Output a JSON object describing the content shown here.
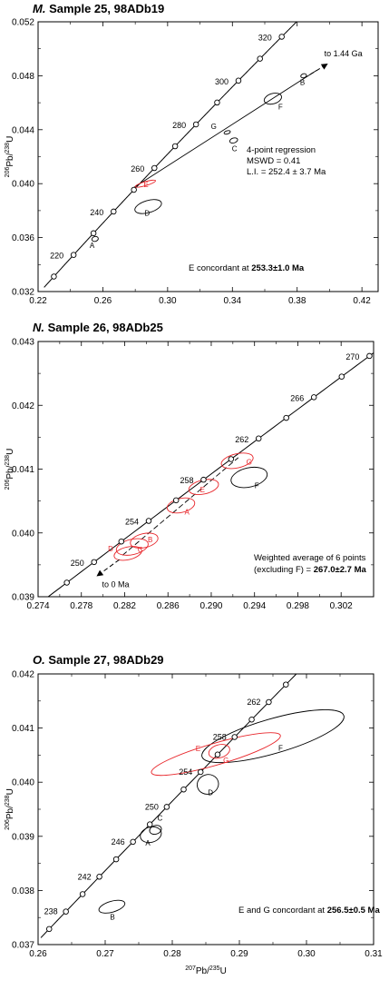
{
  "chart_data": [
    {
      "type": "scatter",
      "panel_letter": "M.",
      "title": "Sample 25, 98ADb19",
      "xlim": [
        0.22,
        0.43
      ],
      "ylim": [
        0.032,
        0.052
      ],
      "xticks": [
        0.22,
        0.26,
        0.3,
        0.34,
        0.38,
        0.42
      ],
      "xtick_labels": [
        "0.22",
        "0.26",
        "0.30",
        "0.34",
        "0.38",
        "0.42"
      ],
      "yticks": [
        0.032,
        0.036,
        0.04,
        0.044,
        0.048,
        0.052
      ],
      "ytick_labels": [
        "0.032",
        "0.036",
        "0.040",
        "0.044",
        "0.048",
        "0.052"
      ],
      "ylabel": "206Pb/238U",
      "ylabel_parts": {
        "sup1": "206",
        "base1": "Pb/",
        "sup2": "238",
        "base2": "U"
      },
      "concordia_range_ma": [
        205,
        330
      ],
      "concordia_age_labels": [
        {
          "ma": 220,
          "text": "220"
        },
        {
          "ma": 240,
          "text": "240"
        },
        {
          "ma": 260,
          "text": "260"
        },
        {
          "ma": 280,
          "text": "280"
        },
        {
          "ma": 300,
          "text": "300"
        },
        {
          "ma": 320,
          "text": "320"
        }
      ],
      "concordia_points_ma": [
        210,
        220,
        230,
        240,
        250,
        260,
        270,
        280,
        290,
        300,
        310,
        320,
        330
      ],
      "regression_line": {
        "x1": 0.279,
        "y1": 0.0397,
        "x2": 0.392,
        "y2": 0.0484
      },
      "arrow": {
        "text": "to 1.44 Ga",
        "x1": 0.384,
        "y1": 0.0478,
        "x2": 0.399,
        "y2": 0.0489
      },
      "ellipses": [
        {
          "label": "A",
          "x": 0.2552,
          "y": 0.0359,
          "rx": 0.002,
          "ry": 0.00018,
          "color": "#000000"
        },
        {
          "label": "B",
          "x": 0.384,
          "y": 0.048,
          "rx": 0.0018,
          "ry": 0.00015,
          "color": "#000000"
        },
        {
          "label": "C",
          "x": 0.3408,
          "y": 0.0432,
          "rx": 0.0025,
          "ry": 0.00018,
          "color": "#000000"
        },
        {
          "label": "D",
          "x": 0.288,
          "y": 0.0383,
          "rx": 0.0085,
          "ry": 0.00045,
          "color": "#000000"
        },
        {
          "label": "E",
          "x": 0.2863,
          "y": 0.04,
          "rx": 0.0065,
          "ry": 0.00015,
          "color": "#e8262b"
        },
        {
          "label": "F",
          "x": 0.365,
          "y": 0.0463,
          "rx": 0.0055,
          "ry": 0.00038,
          "color": "#000000"
        },
        {
          "label": "G",
          "x": 0.3368,
          "y": 0.0438,
          "rx": 0.002,
          "ry": 0.00012,
          "color": "#000000"
        }
      ],
      "notes": [
        {
          "lines": [
            "4-point regression",
            "MSWD = 0.41",
            "L.I. = 252.4 ± 3.7 Ma"
          ]
        }
      ],
      "bold_note": {
        "prefix": "E concordant at ",
        "value": "253.3±1.0 Ma"
      }
    },
    {
      "type": "scatter",
      "panel_letter": "N.",
      "title": "Sample 26, 98ADb25",
      "xlim": [
        0.274,
        0.305
      ],
      "ylim": [
        0.039,
        0.043
      ],
      "xticks": [
        0.274,
        0.278,
        0.282,
        0.286,
        0.29,
        0.294,
        0.298,
        0.302
      ],
      "xtick_labels": [
        "0.274",
        "0.278",
        "0.282",
        "0.286",
        "0.290",
        "0.294",
        "0.298",
        "0.302"
      ],
      "yticks": [
        0.039,
        0.04,
        0.041,
        0.042,
        0.043
      ],
      "ytick_labels": [
        "0.039",
        "0.040",
        "0.041",
        "0.042",
        "0.043"
      ],
      "ylabel": "206Pb/238U",
      "ylabel_parts": {
        "sup1": "206",
        "base1": "Pb/",
        "sup2": "238",
        "base2": "U"
      },
      "concordia_range_ma": [
        245,
        272
      ],
      "concordia_age_labels": [
        {
          "ma": 250,
          "text": "250"
        },
        {
          "ma": 254,
          "text": "254"
        },
        {
          "ma": 258,
          "text": "258"
        },
        {
          "ma": 262,
          "text": "262"
        },
        {
          "ma": 266,
          "text": "266"
        },
        {
          "ma": 270,
          "text": "270"
        }
      ],
      "concordia_points_ma": [
        248,
        250,
        252,
        254,
        256,
        258,
        260,
        262,
        264,
        266,
        268,
        270
      ],
      "regression_line": {
        "x1": 0.2818,
        "y1": 0.03965,
        "x2": 0.2925,
        "y2": 0.04118
      },
      "arrow": {
        "text": "to 0 Ma",
        "x1": 0.2815,
        "y1": 0.03958,
        "x2": 0.2794,
        "y2": 0.03932
      },
      "ellipses": [
        {
          "label": "A",
          "x": 0.2872,
          "y": 0.04043,
          "rx": 0.0013,
          "ry": 0.00011,
          "color": "#e8262b"
        },
        {
          "label": "B",
          "x": 0.2838,
          "y": 0.03988,
          "rx": 0.0013,
          "ry": 0.00011,
          "color": "#e8262b"
        },
        {
          "label": "C",
          "x": 0.2827,
          "y": 0.03978,
          "rx": 0.0015,
          "ry": 0.00012,
          "color": "#e8262b"
        },
        {
          "label": "D",
          "x": 0.2823,
          "y": 0.03968,
          "rx": 0.0013,
          "ry": 0.0001,
          "color": "#e8262b"
        },
        {
          "label": "E",
          "x": 0.2893,
          "y": 0.04072,
          "rx": 0.0014,
          "ry": 0.00011,
          "color": "#e8262b"
        },
        {
          "label": "F",
          "x": 0.2935,
          "y": 0.04087,
          "rx": 0.0017,
          "ry": 0.00015,
          "color": "#000000"
        },
        {
          "label": "G",
          "x": 0.2924,
          "y": 0.04113,
          "rx": 0.0015,
          "ry": 0.00011,
          "color": "#e8262b"
        }
      ],
      "notes": [
        {
          "lines": [
            "Weighted average of 6 points"
          ]
        }
      ],
      "bold_note": {
        "prefix": "(excluding F) = ",
        "value": "267.0±2.7 Ma"
      }
    },
    {
      "type": "scatter",
      "panel_letter": "O.",
      "title": "Sample 27, 98ADb29",
      "xlim": [
        0.26,
        0.31
      ],
      "ylim": [
        0.037,
        0.042
      ],
      "xticks": [
        0.26,
        0.27,
        0.28,
        0.29,
        0.3,
        0.31
      ],
      "xtick_labels": [
        "0.26",
        "0.27",
        "0.28",
        "0.29",
        "0.30",
        "0.31"
      ],
      "yticks": [
        0.037,
        0.038,
        0.039,
        0.04,
        0.041,
        0.042
      ],
      "ytick_labels": [
        "0.037",
        "0.038",
        "0.039",
        "0.040",
        "0.041",
        "0.042"
      ],
      "ylabel": "206Pb/238U",
      "ylabel_parts": {
        "sup1": "206",
        "base1": "Pb/",
        "sup2": "238",
        "base2": "U"
      },
      "xlabel": "207Pb/235U",
      "xlabel_parts": {
        "sup1": "207",
        "base1": "Pb/",
        "sup2": "235",
        "base2": "U"
      },
      "concordia_range_ma": [
        235,
        266
      ],
      "concordia_age_labels": [
        {
          "ma": 238,
          "text": "238"
        },
        {
          "ma": 242,
          "text": "242"
        },
        {
          "ma": 246,
          "text": "246"
        },
        {
          "ma": 250,
          "text": "250"
        },
        {
          "ma": 254,
          "text": "254"
        },
        {
          "ma": 258,
          "text": "258"
        },
        {
          "ma": 262,
          "text": "262"
        }
      ],
      "concordia_points_ma": [
        236,
        238,
        240,
        242,
        244,
        246,
        248,
        250,
        252,
        254,
        256,
        258,
        260,
        262,
        264
      ],
      "ellipses": [
        {
          "label": "A",
          "x": 0.2768,
          "y": 0.03903,
          "rx": 0.0016,
          "ry": 0.00014,
          "color": "#000000"
        },
        {
          "label": "B",
          "x": 0.271,
          "y": 0.0377,
          "rx": 0.002,
          "ry": 0.0001,
          "color": "#000000"
        },
        {
          "label": "C",
          "x": 0.2775,
          "y": 0.03912,
          "rx": 0.0009,
          "ry": 8e-05,
          "color": "#000000"
        },
        {
          "label": "D",
          "x": 0.2853,
          "y": 0.03996,
          "rx": 0.0016,
          "ry": 0.00018,
          "color": "#000000"
        },
        {
          "label": "E",
          "x": 0.287,
          "y": 0.04057,
          "rx": 0.0016,
          "ry": 0.00012,
          "color": "#e8262b"
        },
        {
          "label": "F",
          "x": 0.295,
          "y": 0.04085,
          "rx": 0.011,
          "ry": 0.00032,
          "color": "#000000"
        },
        {
          "label": "G",
          "x": 0.2865,
          "y": 0.04052,
          "rx": 0.01,
          "ry": 0.0002,
          "color": "#e8262b"
        }
      ],
      "notes": [],
      "bold_note": {
        "prefix": "E and G concordant at ",
        "value": "256.5±0.5 Ma"
      }
    }
  ]
}
